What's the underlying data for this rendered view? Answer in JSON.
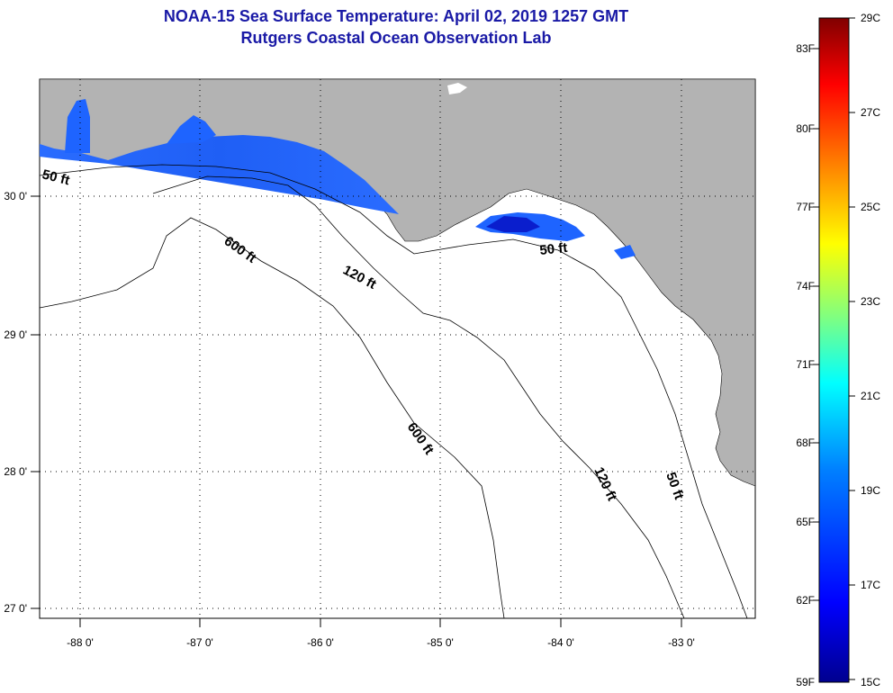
{
  "title_line1": "NOAA-15 Sea Surface Temperature:  April 02, 2019 1257 GMT",
  "title_line2": "Rutgers Coastal Ocean Observation Lab",
  "map": {
    "lon_labels": [
      "-88 0'",
      "-87 0'",
      "-86 0'",
      "-85 0'",
      "-84 0'",
      "-83 0'"
    ],
    "lat_labels": [
      "30 0'",
      "29 0'",
      "28 0'",
      "27 0'"
    ],
    "contour_labels": [
      "50 ft",
      "600 ft",
      "120 ft",
      "50 ft",
      "600 ft",
      "120 ft",
      "50 ft"
    ],
    "colors": {
      "land": "#b3b3b3",
      "sst_blue": "#1e64ff",
      "sst_dark": "#0a1ecd"
    }
  },
  "colorbar": {
    "f_labels": [
      "83F",
      "80F",
      "77F",
      "74F",
      "71F",
      "68F",
      "65F",
      "62F",
      "59F"
    ],
    "c_labels": [
      "29C",
      "27C",
      "25C",
      "23C",
      "21C",
      "19C",
      "17C",
      "15C"
    ],
    "stops": [
      "#00008f",
      "#0000ff",
      "#0080ff",
      "#00ffff",
      "#80ff80",
      "#ffff00",
      "#ff8000",
      "#ff0000",
      "#800000"
    ]
  }
}
